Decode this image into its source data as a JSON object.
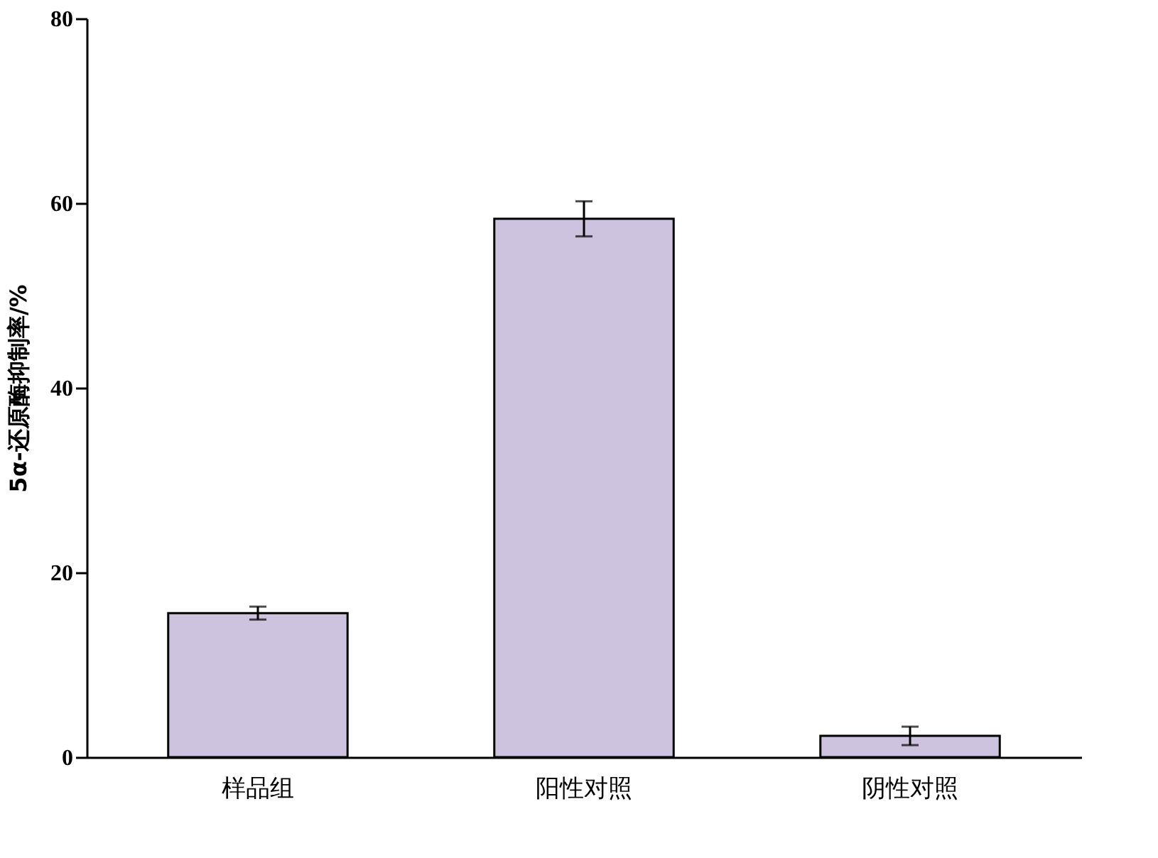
{
  "chart_data": {
    "type": "bar",
    "ylabel": "5α-还原酶抑制率/%",
    "categories": [
      "样品组",
      "阳性对照",
      "阴性对照"
    ],
    "values": [
      15.6,
      58.3,
      2.3
    ],
    "errors": [
      0.7,
      1.9,
      1.0
    ],
    "color": "#cdc3de",
    "ylim": [
      0,
      80
    ],
    "yticks": [
      0,
      20,
      40,
      60,
      80
    ],
    "grid": false
  }
}
